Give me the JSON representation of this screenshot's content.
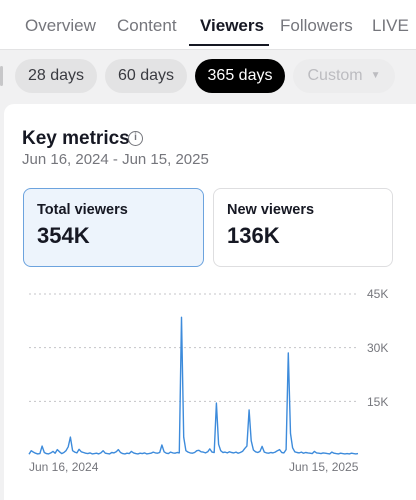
{
  "tabs": [
    {
      "label": "Overview"
    },
    {
      "label": "Content"
    },
    {
      "label": "Viewers"
    },
    {
      "label": "Followers"
    },
    {
      "label": "LIVE"
    }
  ],
  "active_tab": "Viewers",
  "ranges": [
    {
      "label": "28 days"
    },
    {
      "label": "60 days"
    },
    {
      "label": "365 days"
    },
    {
      "label": "Custom"
    }
  ],
  "active_range": "365 days",
  "key_metrics": {
    "title": "Key metrics",
    "date_range": "Jun 16, 2024 - Jun 15, 2025"
  },
  "metrics": [
    {
      "label": "Total viewers",
      "value": "354K"
    },
    {
      "label": "New viewers",
      "value": "136K"
    }
  ],
  "colors": {
    "line": "#3d8bdb",
    "accent": "#000000",
    "selected_card": "#edf4fc"
  },
  "chart_data": {
    "type": "line",
    "title": "",
    "xlabel": "",
    "ylabel": "",
    "x_tick_labels": [
      "Jun 16, 2024",
      "Jun 15, 2025"
    ],
    "y_tick_labels": [
      "45K",
      "30K",
      "15K"
    ],
    "y_ticks": [
      45000,
      30000,
      15000
    ],
    "ylim": [
      0,
      45000
    ],
    "grid": true,
    "series": [
      {
        "values": [
          200,
          1200,
          800,
          500,
          300,
          400,
          2500,
          700,
          400,
          300,
          600,
          1000,
          500,
          1500,
          900,
          400,
          700,
          1200,
          2300,
          5000,
          1200,
          800,
          600,
          1600,
          900,
          700,
          500,
          400,
          600,
          300,
          400,
          500,
          300,
          600,
          1200,
          500,
          400,
          300,
          700,
          600,
          900,
          1500,
          700,
          400,
          300,
          500,
          400,
          1000,
          600,
          400,
          300,
          500,
          400,
          600,
          300,
          400,
          500,
          800,
          600,
          500,
          700,
          2800,
          900,
          500,
          400,
          800,
          600,
          500,
          700,
          600,
          38500,
          5000,
          1200,
          800,
          600,
          500,
          700,
          1200,
          1300,
          900,
          800,
          600,
          900,
          1700,
          800,
          700,
          14500,
          3000,
          1200,
          700,
          800,
          600,
          900,
          700,
          600,
          800,
          500,
          700,
          1000,
          1800,
          2500,
          12600,
          4000,
          1400,
          900,
          700,
          1000,
          2400,
          800,
          600,
          500,
          700,
          600,
          800,
          1200,
          1500,
          700,
          600,
          1500,
          28500,
          6000,
          2000,
          900,
          700,
          600,
          800,
          500,
          700,
          600,
          500,
          400,
          1000,
          600,
          500,
          400,
          600,
          500,
          400,
          300,
          800,
          500,
          400,
          300,
          500,
          400,
          300,
          400,
          300,
          500,
          400,
          300,
          400
        ]
      }
    ]
  }
}
